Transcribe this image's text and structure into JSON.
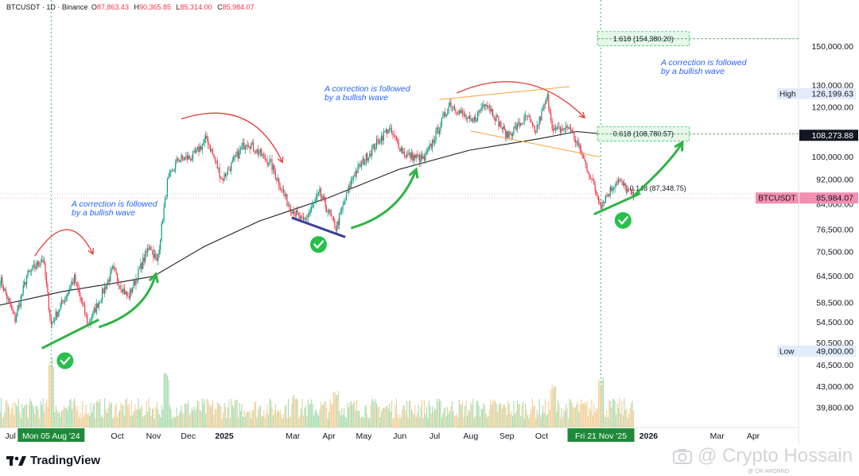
{
  "header": {
    "symbol": "BTCUSDT · 1D · Binance",
    "open_label": "O",
    "open": "87,863.43",
    "high_label": "H",
    "high": "90,365.85",
    "low_label": "L",
    "low": "85,314.00",
    "close_label": "C",
    "close": "85,984.07"
  },
  "branding": {
    "logo_text": "TradingView",
    "watermark": "@ Crypto Hossain",
    "watermark_sub": "@ CR-ARONNO"
  },
  "colors": {
    "up": "#089981",
    "down": "#f23645",
    "ma": "#1e1e1e",
    "fib": "#22c55e",
    "annotation": "#2962ff",
    "price_tag": "#f48fb1"
  },
  "annotations": [
    {
      "line1": "A correction is followed",
      "line2": "by a bullish wave"
    },
    {
      "line1": "A correction is followed",
      "line2": "by a bullish wave"
    },
    {
      "line1": "A correction is followed",
      "line2": "by a bullish wave"
    }
  ],
  "chart_data": {
    "type": "candlestick",
    "symbol": "BTCUSDT",
    "timeframe": "1D",
    "exchange": "Binance",
    "y_scale": "log",
    "ylim": [
      37000,
      178000
    ],
    "x_range": [
      "2024-06-22",
      "2026-05-10"
    ],
    "y_ticks": [
      39800,
      43000,
      46500,
      50500,
      54500,
      58500,
      64500,
      70500,
      76500,
      84000,
      92000,
      100000,
      120000,
      130000,
      150000
    ],
    "y_tick_labels": [
      "39,800.00",
      "43,000.00",
      "46,500.00",
      "50,500.00",
      "54,500.00",
      "58,500.00",
      "64,500.00",
      "70,500.00",
      "76,500.00",
      "84,000.00",
      "92,000.00",
      "100,000.00",
      "120,000.00",
      "130,000.00",
      "150,000.00"
    ],
    "x_ticks": [
      {
        "date": "2024-07-01",
        "label": "Jul"
      },
      {
        "date": "2024-10-01",
        "label": "Oct"
      },
      {
        "date": "2024-11-01",
        "label": "Nov"
      },
      {
        "date": "2024-12-01",
        "label": "Dec"
      },
      {
        "date": "2025-01-01",
        "label": "2025"
      },
      {
        "date": "2025-03-01",
        "label": "Mar"
      },
      {
        "date": "2025-04-01",
        "label": "Apr"
      },
      {
        "date": "2025-05-01",
        "label": "May"
      },
      {
        "date": "2025-06-01",
        "label": "Jun"
      },
      {
        "date": "2025-07-01",
        "label": "Jul"
      },
      {
        "date": "2025-08-01",
        "label": "Aug"
      },
      {
        "date": "2025-09-01",
        "label": "Sep"
      },
      {
        "date": "2025-10-01",
        "label": "Oct"
      },
      {
        "date": "2026-01-01",
        "label": "2026"
      },
      {
        "date": "2026-03-01",
        "label": "Mar"
      },
      {
        "date": "2026-04-01",
        "label": "Apr"
      }
    ],
    "x_highlights": [
      {
        "date": "2024-08-05",
        "label": "Mon 05 Aug '24"
      },
      {
        "date": "2025-11-21",
        "label": "Fri 21 Nov '25"
      }
    ],
    "price_path": [
      [
        "2024-06-22",
        64000
      ],
      [
        "2024-07-05",
        55000
      ],
      [
        "2024-07-15",
        64500
      ],
      [
        "2024-07-29",
        69000
      ],
      [
        "2024-08-05",
        54000
      ],
      [
        "2024-08-25",
        64000
      ],
      [
        "2024-09-06",
        54000
      ],
      [
        "2024-09-27",
        66000
      ],
      [
        "2024-10-10",
        59500
      ],
      [
        "2024-10-29",
        72500
      ],
      [
        "2024-11-04",
        67800
      ],
      [
        "2024-11-13",
        91000
      ],
      [
        "2024-11-22",
        99000
      ],
      [
        "2024-12-05",
        100000
      ],
      [
        "2024-12-17",
        107000
      ],
      [
        "2024-12-30",
        92000
      ],
      [
        "2025-01-20",
        106000
      ],
      [
        "2025-02-10",
        97500
      ],
      [
        "2025-02-25",
        84000
      ],
      [
        "2025-03-10",
        78500
      ],
      [
        "2025-03-24",
        87500
      ],
      [
        "2025-04-07",
        77000
      ],
      [
        "2025-04-22",
        93500
      ],
      [
        "2025-05-10",
        104000
      ],
      [
        "2025-05-22",
        111000
      ],
      [
        "2025-06-05",
        101000
      ],
      [
        "2025-06-22",
        99000
      ],
      [
        "2025-07-10",
        117000
      ],
      [
        "2025-07-14",
        122000
      ],
      [
        "2025-08-02",
        113000
      ],
      [
        "2025-08-14",
        123000
      ],
      [
        "2025-09-01",
        108000
      ],
      [
        "2025-09-19",
        116000
      ],
      [
        "2025-09-25",
        109000
      ],
      [
        "2025-10-06",
        124500
      ],
      [
        "2025-10-11",
        110000
      ],
      [
        "2025-10-25",
        111500
      ],
      [
        "2025-11-04",
        101500
      ],
      [
        "2025-11-21",
        84000
      ],
      [
        "2025-12-05",
        92000
      ],
      [
        "2025-12-14",
        88500
      ],
      [
        "2025-12-19",
        85984
      ]
    ],
    "indicators": [
      {
        "type": "moving-average",
        "points": [
          [
            "2024-06-22",
            58000
          ],
          [
            "2024-08-15",
            61000
          ],
          [
            "2024-10-01",
            63000
          ],
          [
            "2024-11-01",
            64500
          ],
          [
            "2024-12-15",
            72000
          ],
          [
            "2025-01-31",
            79000
          ],
          [
            "2025-03-31",
            86000
          ],
          [
            "2025-05-31",
            95500
          ],
          [
            "2025-07-31",
            102500
          ],
          [
            "2025-09-30",
            107000
          ],
          [
            "2025-10-31",
            109800
          ],
          [
            "2025-12-05",
            108273.88
          ]
        ]
      }
    ],
    "fibonacci": [
      {
        "ratio": "1.618",
        "label": "1.618 (154,380.20)",
        "price": 154380.2
      },
      {
        "ratio": "0.618",
        "label": "0.618 (108,780.57)",
        "price": 108780.57
      },
      {
        "ratio": "0.148",
        "label": "0.148 (87,348.75)",
        "price": 87348.75
      }
    ],
    "price_labels": [
      {
        "name": "High",
        "value": 126199.63,
        "text": "126,199.63"
      },
      {
        "name": "Low",
        "value": 49000.0,
        "text": "49,000.00"
      },
      {
        "name": "",
        "value": 108273.88,
        "text": "108,273.88"
      },
      {
        "name": "BTCUSDT",
        "value": 85984.07,
        "text": "85,984.07"
      }
    ],
    "trendlines": [
      {
        "color": "green",
        "from": [
          "2024-07-28",
          49500
        ],
        "to": [
          "2024-09-15",
          55000
        ]
      },
      {
        "color": "navy",
        "from": [
          "2025-02-28",
          80000
        ],
        "to": [
          "2025-04-15",
          74500
        ]
      },
      {
        "color": "green",
        "from": [
          "2025-11-15",
          81000
        ],
        "to": [
          "2025-12-25",
          87500
        ]
      },
      {
        "color": "orange",
        "from": [
          "2025-07-05",
          123500
        ],
        "to": [
          "2025-10-25",
          129500
        ]
      },
      {
        "color": "orange",
        "from": [
          "2025-08-01",
          110000
        ],
        "to": [
          "2025-11-20",
          100000
        ]
      }
    ],
    "volume_scale": "relative",
    "volume_peaks": [
      [
        "2024-08-05",
        1.0
      ],
      [
        "2024-11-12",
        0.75
      ],
      [
        "2025-03-03",
        0.45
      ],
      [
        "2025-04-07",
        0.55
      ],
      [
        "2025-10-11",
        0.6
      ],
      [
        "2025-11-21",
        0.7
      ]
    ]
  }
}
